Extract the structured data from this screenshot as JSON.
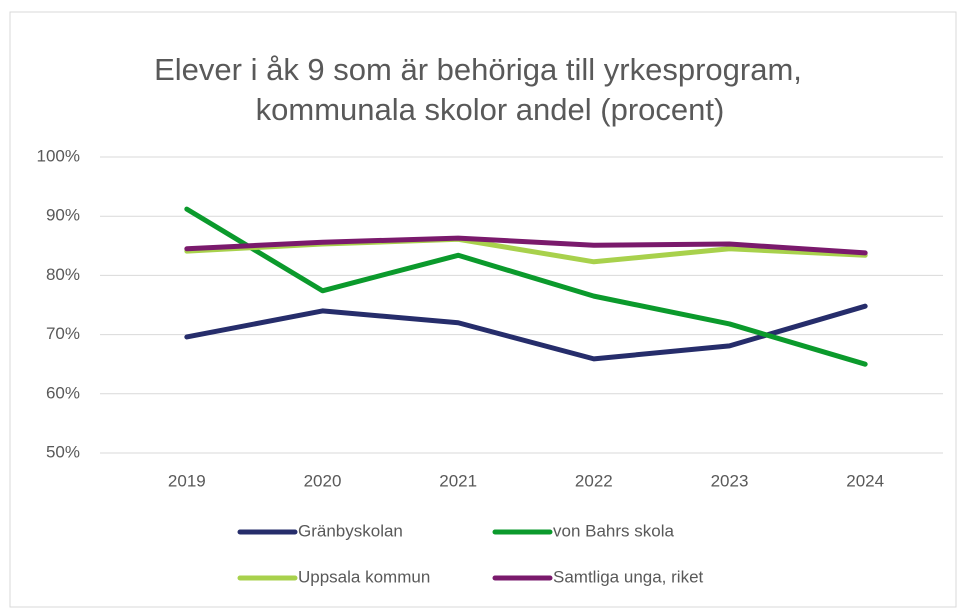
{
  "chart_data": {
    "type": "line",
    "title": [
      "Elever i åk 9 som är behöriga till yrkesprogram,",
      "kommunala skolor andel (procent)"
    ],
    "categories": [
      "2019",
      "2020",
      "2021",
      "2022",
      "2023",
      "2024"
    ],
    "series": [
      {
        "name": "Gränbyskolan",
        "color": "#262d6b",
        "values": [
          69.6,
          74.0,
          72.0,
          65.9,
          68.1,
          74.8
        ]
      },
      {
        "name": "von Bahrs skola",
        "color": "#0b9a2c",
        "values": [
          91.2,
          77.4,
          83.4,
          76.5,
          71.8,
          65.0
        ]
      },
      {
        "name": "Uppsala kommun",
        "color": "#a8d14c",
        "values": [
          84.1,
          85.3,
          86.1,
          82.3,
          84.5,
          83.4
        ]
      },
      {
        "name": "Samtliga unga, riket",
        "color": "#7a1a6c",
        "values": [
          84.5,
          85.6,
          86.3,
          85.1,
          85.3,
          83.8
        ]
      }
    ],
    "ylim": [
      50,
      100
    ],
    "yticks": [
      {
        "value": 50,
        "label": "50%"
      },
      {
        "value": 60,
        "label": "60%"
      },
      {
        "value": 70,
        "label": "70%"
      },
      {
        "value": 80,
        "label": "80%"
      },
      {
        "value": 90,
        "label": "90%"
      },
      {
        "value": 100,
        "label": "100%"
      }
    ],
    "grid": true,
    "legend": "bottom"
  }
}
